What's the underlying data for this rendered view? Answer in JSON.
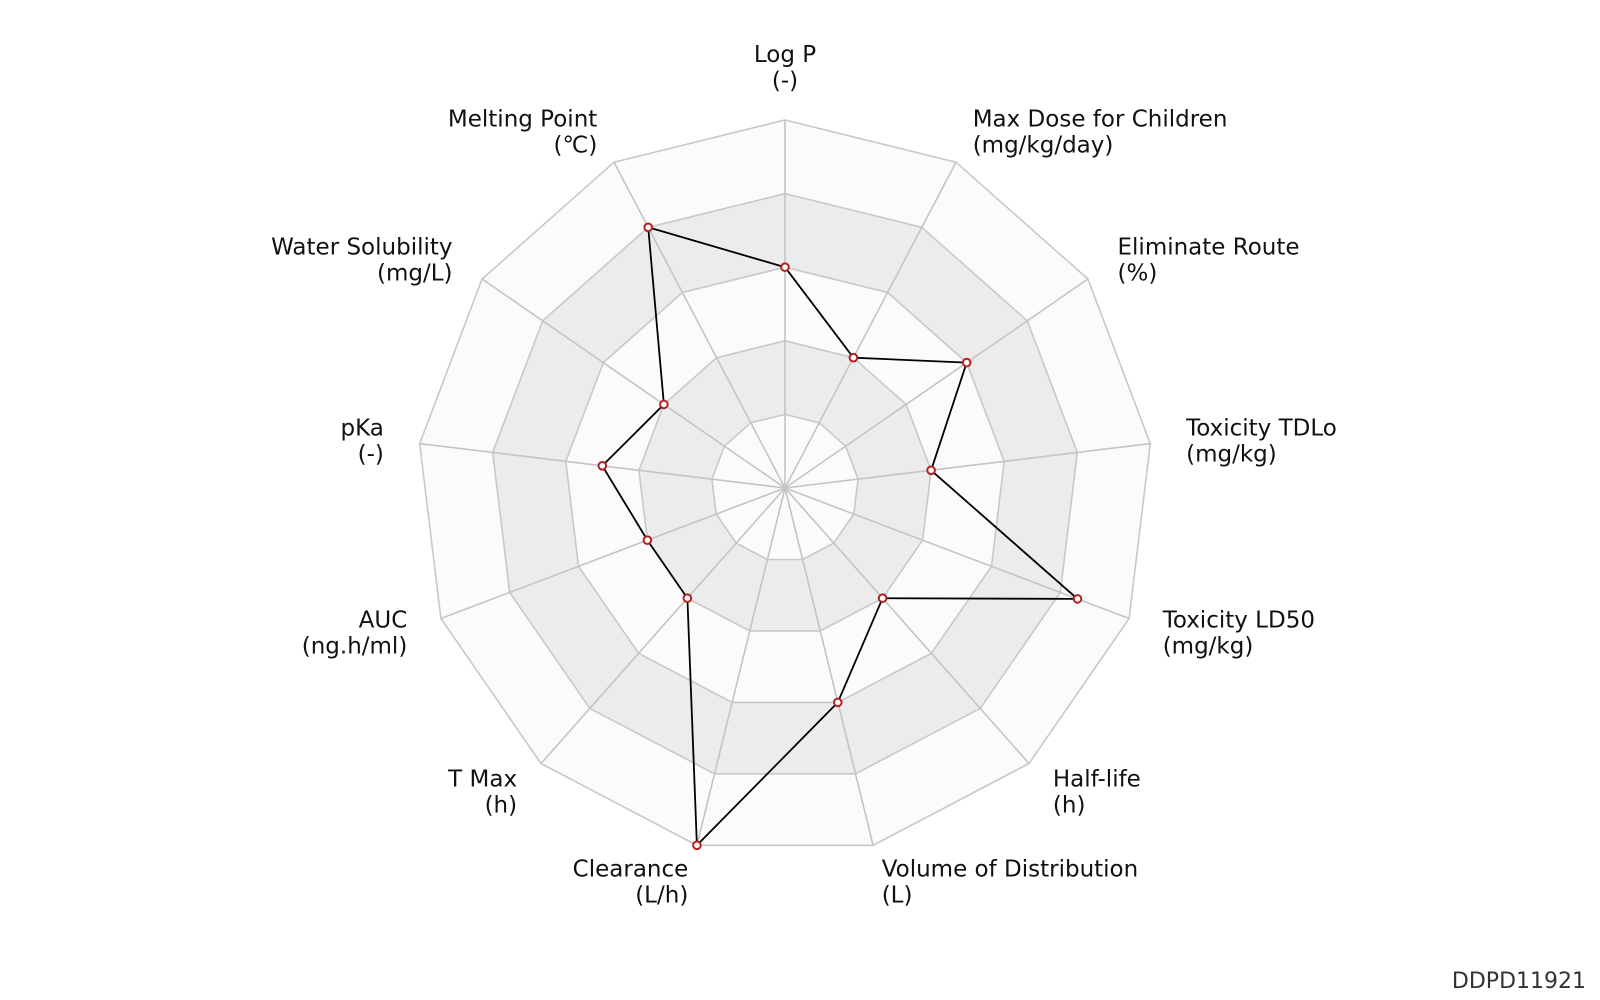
{
  "chart_data": {
    "type": "radar",
    "axes": [
      {
        "name": "Log P",
        "unit": "(-)",
        "value": 0.6
      },
      {
        "name": "Max Dose for Children",
        "unit": "(mg/kg/day)",
        "value": 0.4
      },
      {
        "name": "Eliminate Route",
        "unit": "(%)",
        "value": 0.6
      },
      {
        "name": "Toxicity TDLo",
        "unit": "(mg/kg)",
        "value": 0.4
      },
      {
        "name": "Toxicity LD50",
        "unit": "(mg/kg)",
        "value": 0.85
      },
      {
        "name": "Half-life",
        "unit": "(h)",
        "value": 0.4
      },
      {
        "name": "Volume of Distribution",
        "unit": "(L)",
        "value": 0.6
      },
      {
        "name": "Clearance",
        "unit": "(L/h)",
        "value": 1.0
      },
      {
        "name": "T Max",
        "unit": "(h)",
        "value": 0.4
      },
      {
        "name": "AUC",
        "unit": "(ng.h/ml)",
        "value": 0.4
      },
      {
        "name": "pKa",
        "unit": "(-)",
        "value": 0.5
      },
      {
        "name": "Water Solubility",
        "unit": "(mg/L)",
        "value": 0.4
      },
      {
        "name": "Melting Point",
        "unit": "(℃)",
        "value": 0.8
      }
    ],
    "range": [
      0,
      1
    ],
    "rings": [
      0.2,
      0.4,
      0.6,
      0.8,
      1.0
    ],
    "grid": true,
    "colors": {
      "band_light": "#fbfbfb",
      "band_dark": "#ececec",
      "grid_line": "#c8c8c8",
      "series_line": "#000000",
      "marker_edge": "#b22222"
    }
  },
  "chart_id": "DDPD11921"
}
